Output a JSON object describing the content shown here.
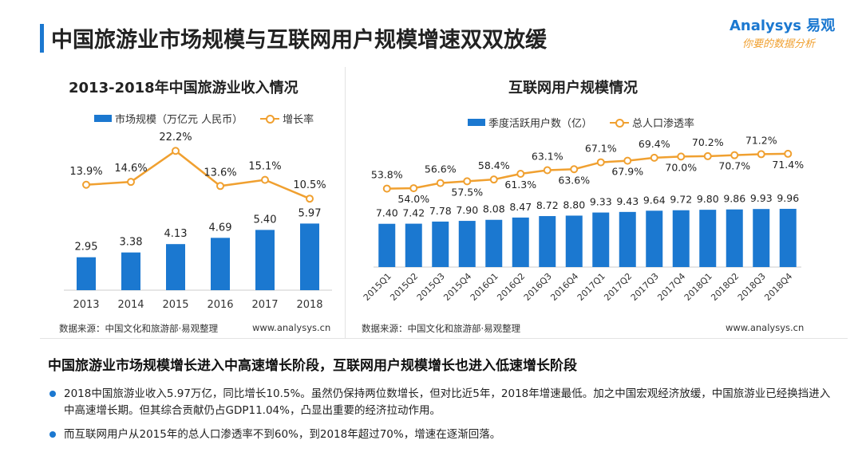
{
  "header": {
    "title": "中国旅游业市场规模与互联网用户规模增速双双放缓",
    "logo_text": "Analysys 易观",
    "logo_slogan": "你要的数据分析"
  },
  "colors": {
    "accent": "#1b78d0",
    "line": "#f0a030"
  },
  "chart_left": {
    "title": "2013-2018年中国旅游业收入情况",
    "legend_bar": "市场规模（万亿元 人民币）",
    "legend_line": "增长率",
    "source": "数据来源：中国文化和旅游部·易观整理",
    "site": "www.analysys.cn"
  },
  "chart_right": {
    "title": "互联网用户规模情况",
    "legend_bar": "季度活跃用户数（亿）",
    "legend_line": "总人口渗透率",
    "source": "数据来源：中国文化和旅游部·易观整理",
    "site": "www.analysys.cn"
  },
  "chart_data": [
    {
      "type": "bar",
      "title": "2013-2018年中国旅游业收入情况",
      "categories": [
        "2013",
        "2014",
        "2015",
        "2016",
        "2017",
        "2018"
      ],
      "series": [
        {
          "name": "市场规模（万亿元 人民币）",
          "type": "bar",
          "values": [
            2.95,
            3.38,
            4.13,
            4.69,
            5.4,
            5.97
          ]
        },
        {
          "name": "增长率",
          "type": "line",
          "values": [
            13.9,
            14.6,
            22.2,
            13.6,
            15.1,
            10.5
          ]
        }
      ],
      "bar_labels": [
        "2.95",
        "3.38",
        "4.13",
        "4.69",
        "5.40",
        "5.97"
      ],
      "line_labels": [
        "13.9%",
        "14.6%",
        "22.2%",
        "13.6%",
        "15.1%",
        "10.5%"
      ]
    },
    {
      "type": "bar",
      "title": "互联网用户规模情况",
      "categories": [
        "2015Q1",
        "2015Q2",
        "2015Q3",
        "2015Q4",
        "2016Q1",
        "2016Q2",
        "2016Q3",
        "2016Q4",
        "2017Q1",
        "2017Q2",
        "2017Q3",
        "2017Q4",
        "2018Q1",
        "2018Q2",
        "2018Q3",
        "2018Q4"
      ],
      "series": [
        {
          "name": "季度活跃用户数（亿）",
          "type": "bar",
          "values": [
            7.4,
            7.42,
            7.78,
            7.9,
            8.08,
            8.47,
            8.72,
            8.8,
            9.33,
            9.43,
            9.64,
            9.72,
            9.8,
            9.86,
            9.93,
            9.96
          ]
        },
        {
          "name": "总人口渗透率",
          "type": "line",
          "values": [
            53.8,
            54.0,
            56.6,
            57.5,
            58.4,
            61.3,
            63.1,
            63.6,
            67.1,
            67.9,
            69.4,
            70.0,
            70.2,
            70.7,
            71.2,
            71.4
          ]
        }
      ],
      "bar_labels": [
        "7.40",
        "7.42",
        "7.78",
        "7.90",
        "8.08",
        "8.47",
        "8.72",
        "8.80",
        "9.33",
        "9.43",
        "9.64",
        "9.72",
        "9.80",
        "9.86",
        "9.93",
        "9.96"
      ],
      "line_labels": [
        "53.8%",
        "54.0%",
        "56.6%",
        "57.5%",
        "58.4%",
        "61.3%",
        "63.1%",
        "63.6%",
        "67.1%",
        "67.9%",
        "69.4%",
        "70.0%",
        "70.2%",
        "70.7%",
        "71.2%",
        "71.4%"
      ]
    }
  ],
  "conclusion": {
    "heading": "中国旅游业市场规模增长进入中高速增长阶段，互联网用户规模增长也进入低速增长阶段",
    "bullets": [
      "2018中国旅游业收入5.97万亿，同比增长10.5%。虽然仍保持两位数增长，但对比近5年，2018年增速最低。加之中国宏观经济放缓，中国旅游业已经换挡进入中高速增长期。但其综合贡献仍占GDP11.04%，凸显出重要的经济拉动作用。",
      "而互联网用户从2015年的总人口渗透率不到60%，到2018年超过70%，增速在逐渐回落。"
    ]
  }
}
